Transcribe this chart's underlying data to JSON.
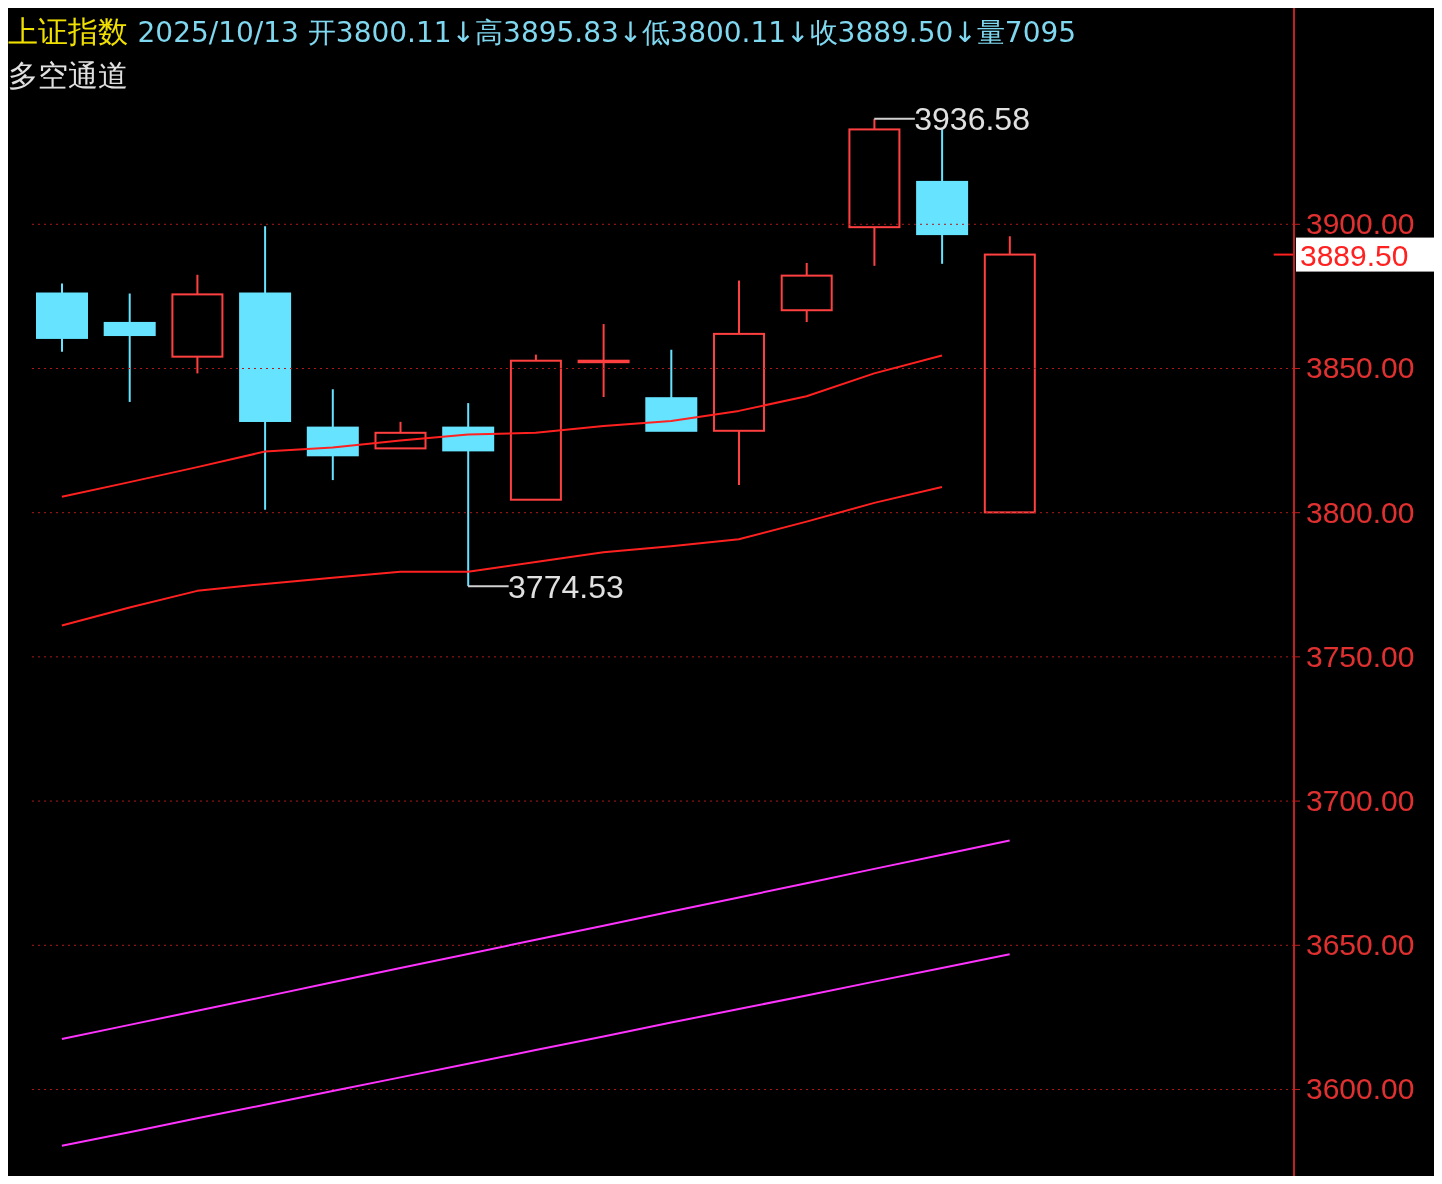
{
  "chart_data": {
    "type": "candlestick",
    "title": "上证指数",
    "subtitle": "2025/10/13 开3800.11↓高3895.83↓低3800.11↓收3889.50↓量7095",
    "annotations": [
      "多空通道",
      "3936.58",
      "3774.53"
    ],
    "categories": [
      null,
      null,
      null,
      null,
      null,
      null,
      null,
      null,
      null,
      null,
      null,
      null,
      null,
      null,
      null
    ],
    "ohlc": [
      [
        3876.0,
        3879.5,
        3855.8,
        3860.6
      ],
      [
        3865.8,
        3876.0,
        3838.4,
        3861.6
      ],
      [
        3854.1,
        3882.5,
        3848.3,
        3875.7
      ],
      [
        3876.0,
        3899.3,
        3801.0,
        3831.8
      ],
      [
        3829.5,
        3842.8,
        3811.3,
        3819.9
      ],
      [
        3822.3,
        3831.5,
        3822.3,
        3827.7
      ],
      [
        3829.5,
        3838.0,
        3774.53,
        3821.6
      ],
      [
        3804.5,
        3854.8,
        3804.5,
        3852.7
      ],
      [
        3852.7,
        3865.4,
        3840.1,
        3852.7
      ],
      [
        3839.7,
        3856.5,
        3828.4,
        3828.4
      ],
      [
        3828.4,
        3880.5,
        3809.6,
        3862.0
      ],
      [
        3870.2,
        3886.6,
        3866.1,
        3882.2
      ],
      [
        3899.0,
        3936.58,
        3885.6,
        3932.9
      ],
      [
        3914.7,
        3933.0,
        3886.3,
        3896.6
      ],
      [
        3800.11,
        3895.83,
        3800.11,
        3889.5
      ]
    ],
    "colors": [
      "#66e3ff",
      "#66e3ff",
      "#ff4040",
      "#66e3ff",
      "#66e3ff",
      "#ff4040",
      "#66e3ff",
      "#ff4040",
      "#ff4040",
      "#66e3ff",
      "#ff4040",
      "#ff4040",
      "#ff4040",
      "#66e3ff",
      "#ff4040"
    ],
    "series": [
      {
        "type": "line",
        "color": "#ff2020",
        "values": [
          3805.5,
          3810.6,
          3815.8,
          3821.2,
          3822.6,
          3825.0,
          3827.1,
          3827.7,
          3830.1,
          3831.8,
          3835.3,
          3840.4,
          3848.3,
          3854.5,
          null
        ]
      },
      {
        "type": "line",
        "color": "#ff2020",
        "values": [
          3760.9,
          3767.1,
          3772.9,
          3775.3,
          3777.4,
          3779.5,
          3779.5,
          3782.9,
          3786.3,
          3788.4,
          3790.8,
          3796.9,
          3803.4,
          3808.9,
          null
        ]
      },
      {
        "type": "line",
        "color": "#ff33ff",
        "values": [
          3617.5,
          3622.4,
          3627.3,
          3632.2,
          3637.2,
          3642.1,
          3647.0,
          3651.9,
          3656.8,
          3661.7,
          3666.6,
          3671.5,
          3676.5,
          3681.4,
          3686.3
        ]
      },
      {
        "type": "line",
        "color": "#ff33ff",
        "values": [
          3580.5,
          3585.2,
          3590.0,
          3594.7,
          3599.5,
          3604.2,
          3608.9,
          3613.7,
          3618.4,
          3623.2,
          3627.9,
          3632.6,
          3637.4,
          3642.1,
          3646.9
        ]
      }
    ],
    "ylim": [
      3570,
      3975
    ],
    "yticks": [
      {
        "value": 3600,
        "label": "3600.00"
      },
      {
        "value": 3650,
        "label": "3650.00"
      },
      {
        "value": 3700,
        "label": "3700.00"
      },
      {
        "value": 3750,
        "label": "3750.00"
      },
      {
        "value": 3800,
        "label": "3800.00"
      },
      {
        "value": 3850,
        "label": "3850.00"
      },
      {
        "value": 3900,
        "label": "3900.00"
      }
    ],
    "ref_lines": [
      {
        "axis": "y",
        "value": 3889.5,
        "label": "3889.50",
        "color": "#ff2020"
      }
    ],
    "grid": "y",
    "tick_labels": "y"
  }
}
